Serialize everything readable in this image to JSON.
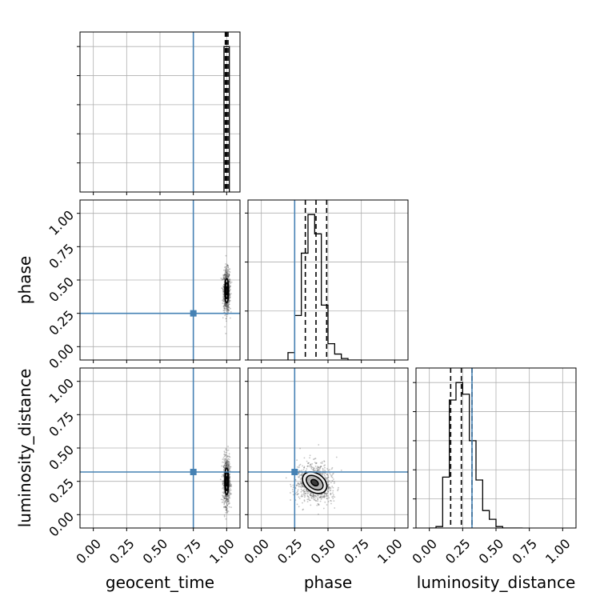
{
  "chart_data": {
    "type": "corner",
    "parameters": [
      "geocent_time",
      "phase",
      "luminosity_distance"
    ],
    "axis_labels": {
      "x": [
        "geocent_time",
        "phase",
        "luminosity_distance"
      ],
      "y": [
        "",
        "phase",
        "luminosity_distance"
      ]
    },
    "ticks": [
      0.0,
      0.25,
      0.5,
      0.75,
      1.0
    ],
    "tick_labels": [
      "0.00",
      "0.25",
      "0.50",
      "0.75",
      "1.00"
    ],
    "range": [
      -0.1,
      1.1
    ],
    "grid": true,
    "truth_color": "#4682b4",
    "hist_color": "#000000",
    "truths": {
      "geocent_time": 0.75,
      "phase": 0.25,
      "luminosity_distance": 0.32
    },
    "histograms": {
      "geocent_time": {
        "bin_edges": [
          0.98,
          1.02
        ],
        "counts": [
          1.0
        ],
        "quantiles": [
          0.99,
          1.0,
          1.01
        ],
        "yticks": [
          0.2,
          0.4,
          0.6,
          0.8,
          1.0
        ]
      },
      "phase": {
        "bin_edges": [
          0.2,
          0.25,
          0.3,
          0.35,
          0.4,
          0.45,
          0.5,
          0.55,
          0.6,
          0.65,
          0.7,
          0.75
        ],
        "counts": [
          0.05,
          0.3,
          0.72,
          0.98,
          0.85,
          0.37,
          0.11,
          0.04,
          0.01,
          0.0,
          0.0
        ],
        "quantiles": [
          0.33,
          0.41,
          0.49
        ],
        "yticks": [
          0.0,
          0.33,
          0.66,
          0.99
        ]
      },
      "luminosity_distance": {
        "bin_edges": [
          0.0,
          0.05,
          0.1,
          0.15,
          0.2,
          0.25,
          0.3,
          0.35,
          0.4,
          0.45,
          0.5,
          0.55,
          0.6,
          0.65,
          0.7
        ],
        "counts": [
          0.0,
          0.01,
          0.35,
          0.88,
          1.0,
          0.92,
          0.6,
          0.33,
          0.12,
          0.06,
          0.01,
          0.0,
          0.0,
          0.0
        ],
        "quantiles": [
          0.16,
          0.24,
          0.32
        ],
        "yticks": [
          0.0,
          0.2,
          0.4,
          0.6,
          0.8,
          1.0
        ]
      }
    },
    "posterior_2d": [
      {
        "x": "geocent_time",
        "y": "phase",
        "center": [
          1.0,
          0.42
        ],
        "spread": [
          0.012,
          0.08
        ],
        "contours": [
          [
            0.006,
            0.03
          ],
          [
            0.01,
            0.06
          ],
          [
            0.014,
            0.09
          ]
        ],
        "scatter_extent": [
          [
            0.98,
            1.02
          ],
          [
            0.2,
            0.7
          ]
        ]
      },
      {
        "x": "geocent_time",
        "y": "luminosity_distance",
        "center": [
          1.0,
          0.25
        ],
        "spread": [
          0.012,
          0.09
        ],
        "contours": [
          [
            0.006,
            0.035
          ],
          [
            0.01,
            0.07
          ],
          [
            0.014,
            0.1
          ]
        ],
        "scatter_extent": [
          [
            0.98,
            1.02
          ],
          [
            0.05,
            0.52
          ]
        ]
      },
      {
        "x": "phase",
        "y": "luminosity_distance",
        "center": [
          0.4,
          0.24
        ],
        "spread": [
          0.07,
          0.07
        ],
        "contours": [
          [
            0.03,
            0.02
          ],
          [
            0.07,
            0.045
          ],
          [
            0.1,
            0.07
          ]
        ],
        "angle_deg": -35,
        "scatter_extent": [
          [
            0.25,
            0.7
          ],
          [
            0.05,
            0.45
          ]
        ]
      }
    ]
  }
}
